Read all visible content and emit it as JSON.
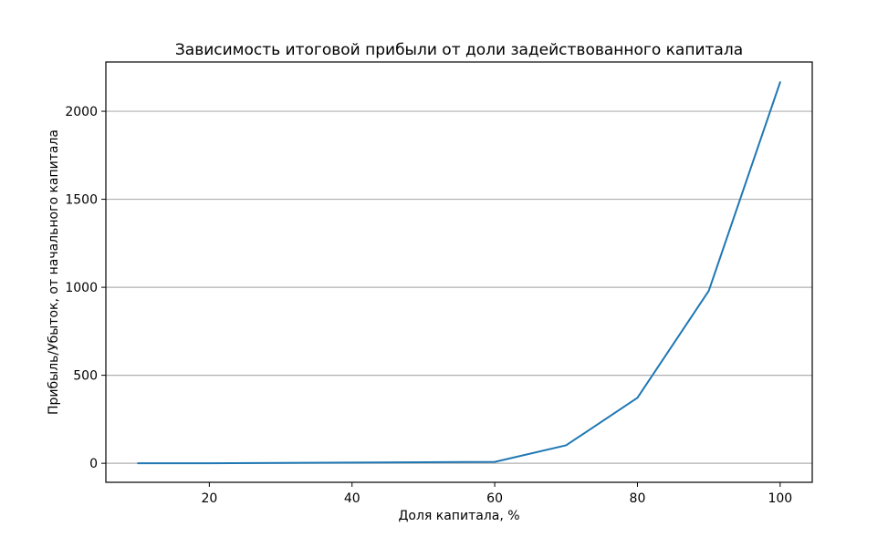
{
  "chart_data": {
    "type": "line",
    "title": "Зависимость итоговой прибыли от доли задействованного капитала",
    "xlabel": "Доля капитала, %",
    "ylabel": "Прибыль/Убыток, от начального капитала",
    "xlim": [
      5.5,
      104.5
    ],
    "ylim": [
      -108,
      2280
    ],
    "xticks": [
      20,
      40,
      60,
      80,
      100
    ],
    "yticks": [
      0,
      500,
      1000,
      1500,
      2000
    ],
    "grid": "y",
    "x": [
      10,
      20,
      30,
      40,
      50,
      60,
      70,
      80,
      90,
      100
    ],
    "series": [
      {
        "values": [
          0,
          0,
          2,
          4,
          6,
          8,
          102,
          372,
          980,
          2165
        ],
        "color": "#1f77b4"
      }
    ]
  }
}
